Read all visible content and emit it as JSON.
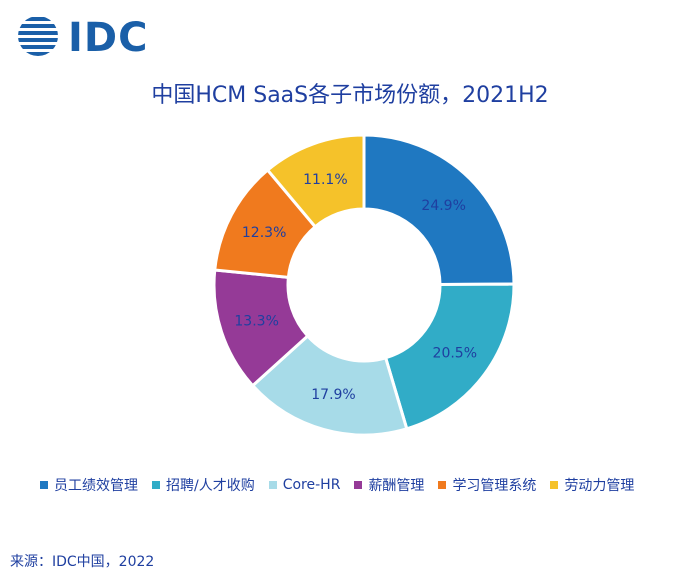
{
  "logo": {
    "text": "IDC"
  },
  "chart_data": {
    "type": "pie",
    "title": "中国HCM SaaS各子市场份额，2021H2",
    "categories": [
      "员工绩效管理",
      "招聘/人才收购",
      "Core-HR",
      "薪酬管理",
      "学习管理系统",
      "劳动力管理"
    ],
    "values": [
      24.9,
      20.5,
      17.9,
      13.3,
      12.3,
      11.1
    ],
    "value_labels": [
      "24.9%",
      "20.5%",
      "17.9%",
      "13.3%",
      "12.3%",
      "11.1%"
    ],
    "colors": [
      "#1f78c1",
      "#31acc7",
      "#a7dbe8",
      "#953a97",
      "#f07a1e",
      "#f5c22a"
    ],
    "donut": true,
    "legend_position": "bottom"
  },
  "source": "来源：IDC中国，2022"
}
